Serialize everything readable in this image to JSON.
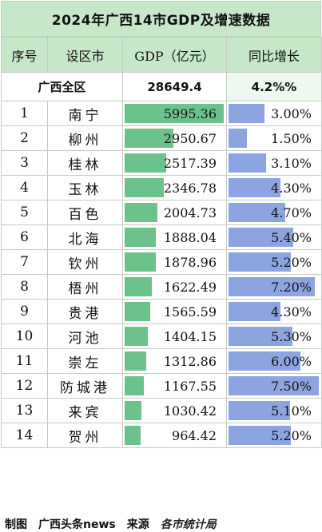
{
  "title": "2024年广西14市GDP及增速数据",
  "headers": [
    "序号",
    "设区市",
    "GDP（亿元）",
    "同比增长"
  ],
  "total": {
    "name": "广西全区",
    "gdp": "28649.4",
    "growth": "4.2%%"
  },
  "chart_data": {
    "type": "table",
    "title": "2024年广西14市GDP及增速数据",
    "columns": [
      "序号",
      "设区市",
      "GDP（亿元）",
      "同比增长"
    ],
    "rows": [
      {
        "rank": "1",
        "city": "南宁",
        "gdp": 5995.36,
        "gdp_label": "5995.36",
        "growth": 3.0,
        "growth_label": "3.00%"
      },
      {
        "rank": "2",
        "city": "柳州",
        "gdp": 2950.67,
        "gdp_label": "2950.67",
        "growth": 1.5,
        "growth_label": "1.50%"
      },
      {
        "rank": "3",
        "city": "桂林",
        "gdp": 2517.39,
        "gdp_label": "2517.39",
        "growth": 3.1,
        "growth_label": "3.10%"
      },
      {
        "rank": "4",
        "city": "玉林",
        "gdp": 2346.78,
        "gdp_label": "2346.78",
        "growth": 4.3,
        "growth_label": "4.30%"
      },
      {
        "rank": "5",
        "city": "百色",
        "gdp": 2004.73,
        "gdp_label": "2004.73",
        "growth": 4.7,
        "growth_label": "4.70%"
      },
      {
        "rank": "6",
        "city": "北海",
        "gdp": 1888.04,
        "gdp_label": "1888.04",
        "growth": 5.4,
        "growth_label": "5.40%"
      },
      {
        "rank": "7",
        "city": "钦州",
        "gdp": 1878.96,
        "gdp_label": "1878.96",
        "growth": 5.2,
        "growth_label": "5.20%"
      },
      {
        "rank": "8",
        "city": "梧州",
        "gdp": 1622.49,
        "gdp_label": "1622.49",
        "growth": 7.2,
        "growth_label": "7.20%"
      },
      {
        "rank": "9",
        "city": "贵港",
        "gdp": 1565.59,
        "gdp_label": "1565.59",
        "growth": 4.3,
        "growth_label": "4.30%"
      },
      {
        "rank": "10",
        "city": "河池",
        "gdp": 1404.15,
        "gdp_label": "1404.15",
        "growth": 5.3,
        "growth_label": "5.30%"
      },
      {
        "rank": "11",
        "city": "崇左",
        "gdp": 1312.86,
        "gdp_label": "1312.86",
        "growth": 6.0,
        "growth_label": "6.00%"
      },
      {
        "rank": "12",
        "city": "防城港",
        "gdp": 1167.55,
        "gdp_label": "1167.55",
        "growth": 7.5,
        "growth_label": "7.50%"
      },
      {
        "rank": "13",
        "city": "来宾",
        "gdp": 1030.42,
        "gdp_label": "1030.42",
        "growth": 5.1,
        "growth_label": "5.10%"
      },
      {
        "rank": "14",
        "city": "贺州",
        "gdp": 964.42,
        "gdp_label": "964.42",
        "growth": 5.2,
        "growth_label": "5.20%"
      }
    ],
    "gdp_bar_max": 5995.36,
    "growth_bar_max": 7.5,
    "colors": {
      "gdp_bar": "#6bc28a",
      "growth_bar": "#8ca4e0",
      "header_bg": "#c6e8c9"
    }
  },
  "footer": {
    "label": "制图",
    "author": "广西头条news",
    "source_label": "来源",
    "source": "各市统计局"
  }
}
